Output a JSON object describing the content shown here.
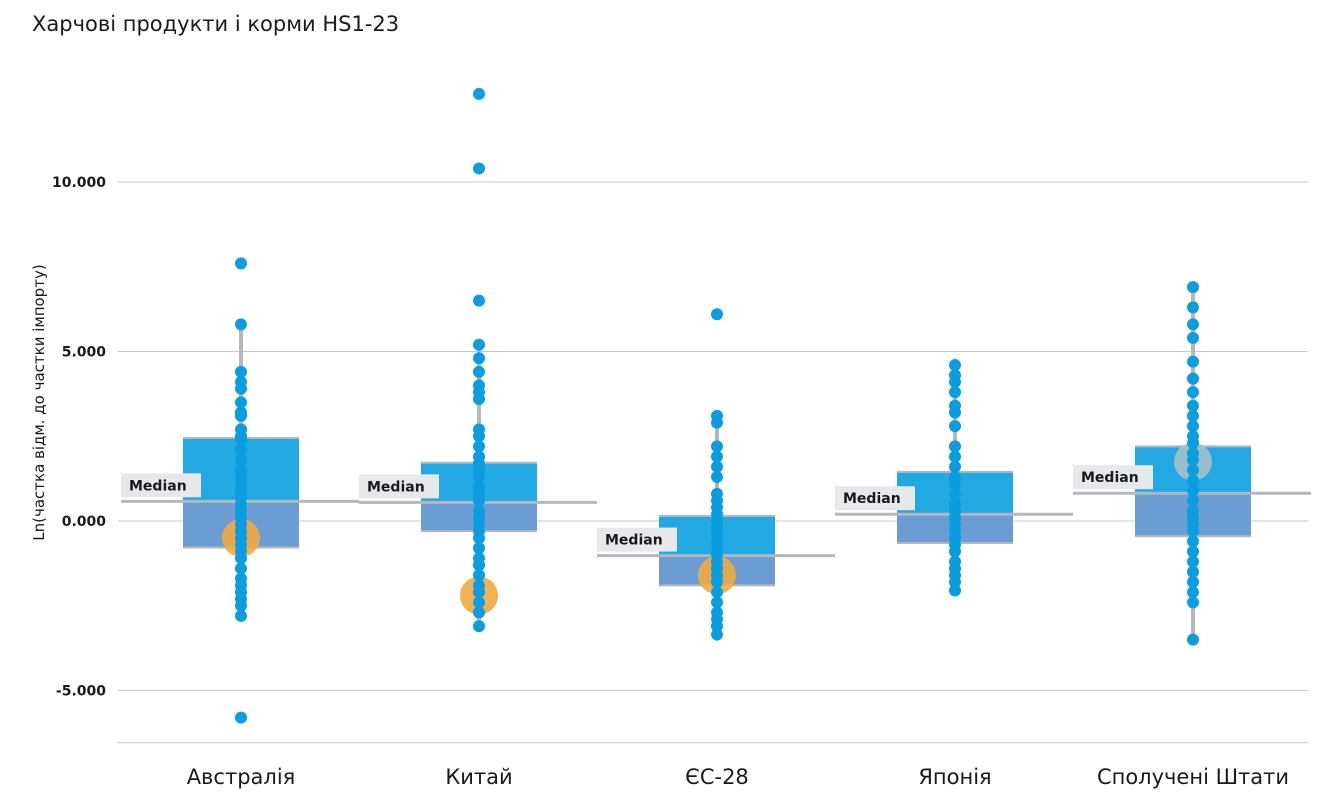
{
  "chart_data": {
    "type": "box-scatter",
    "title": "Харчові продукти і корми HS1-23",
    "ylabel": "Ln(частка відм. до  частки імпорту)",
    "ylim": [
      -6.6,
      13.0
    ],
    "yticks": [
      10,
      5,
      0,
      -5
    ],
    "ytick_labels": [
      "10.000",
      "5.000",
      "0.000",
      "-5.000"
    ],
    "grid": true,
    "median_label": "Median",
    "colors": {
      "upper_box": "#22a8e3",
      "lower_box": "#6b9dd4",
      "point": "#0a9ee0",
      "highlight": "#f3a941",
      "highlight_us": "#a7bfc8",
      "whisker": "#b4b7bd",
      "grid": "#c8c8c8"
    },
    "categories": [
      "Австралія",
      "Китай",
      "ЄС-28",
      "Японія",
      "Сполучені Штати"
    ],
    "groups": [
      {
        "category": "Австралія",
        "q1": -0.78,
        "median": 0.58,
        "q3": 2.45,
        "whisker_low": -2.8,
        "whisker_high": 5.8,
        "highlight": -0.5,
        "points": [
          7.6,
          5.8,
          4.4,
          4.1,
          3.9,
          3.5,
          3.2,
          3.1,
          2.7,
          2.5,
          2.4,
          2.1,
          1.8,
          1.5,
          1.3,
          1.1,
          0.9,
          0.7,
          0.5,
          0.3,
          0.1,
          -0.1,
          -0.3,
          -0.5,
          -0.7,
          -0.9,
          -1.1,
          -1.4,
          -1.7,
          -1.9,
          -2.1,
          -2.3,
          -2.5,
          -2.8,
          -5.8
        ]
      },
      {
        "category": "Китай",
        "q1": -0.3,
        "median": 0.55,
        "q3": 1.72,
        "whisker_low": -3.1,
        "whisker_high": 5.2,
        "highlight": -2.2,
        "points": [
          12.6,
          10.4,
          6.5,
          5.2,
          4.8,
          4.4,
          4.0,
          3.8,
          3.6,
          2.7,
          2.5,
          2.2,
          1.9,
          1.7,
          1.5,
          1.3,
          1.0,
          0.8,
          0.6,
          0.3,
          0.1,
          -0.1,
          -0.3,
          -0.5,
          -0.8,
          -1.1,
          -1.3,
          -1.6,
          -1.9,
          -2.1,
          -2.4,
          -2.7,
          -3.1
        ]
      },
      {
        "category": "ЄС-28",
        "q1": -1.9,
        "median": -1.02,
        "q3": 0.15,
        "whisker_low": -3.35,
        "whisker_high": 3.05,
        "highlight": -1.6,
        "points": [
          6.1,
          3.1,
          2.9,
          2.2,
          1.9,
          1.6,
          1.3,
          0.8,
          0.6,
          0.4,
          0.2,
          0.0,
          -0.2,
          -0.4,
          -0.6,
          -0.8,
          -1.0,
          -1.2,
          -1.4,
          -1.6,
          -1.8,
          -2.1,
          -2.4,
          -2.7,
          -2.9,
          -3.1,
          -3.35
        ]
      },
      {
        "category": "Японія",
        "q1": -0.65,
        "median": 0.2,
        "q3": 1.45,
        "whisker_low": -2.05,
        "whisker_high": 4.6,
        "highlight": null,
        "points": [
          4.6,
          4.3,
          4.1,
          3.8,
          3.4,
          3.2,
          2.8,
          2.2,
          1.9,
          1.6,
          1.3,
          1.1,
          0.8,
          0.5,
          0.3,
          0.1,
          -0.1,
          -0.3,
          -0.5,
          -0.7,
          -0.9,
          -1.2,
          -1.4,
          -1.6,
          -1.8,
          -2.05
        ]
      },
      {
        "category": "Сполучені Штати",
        "q1": -0.45,
        "median": 0.82,
        "q3": 2.2,
        "whisker_low": -3.5,
        "whisker_high": 6.9,
        "highlight": 1.75,
        "points": [
          6.9,
          6.3,
          5.8,
          5.4,
          4.7,
          4.2,
          3.8,
          3.4,
          3.1,
          2.8,
          2.5,
          2.3,
          2.0,
          1.8,
          1.5,
          1.2,
          0.9,
          0.6,
          0.3,
          0.1,
          -0.1,
          -0.3,
          -0.6,
          -0.9,
          -1.2,
          -1.5,
          -1.8,
          -2.1,
          -2.4,
          -3.5
        ]
      }
    ]
  }
}
